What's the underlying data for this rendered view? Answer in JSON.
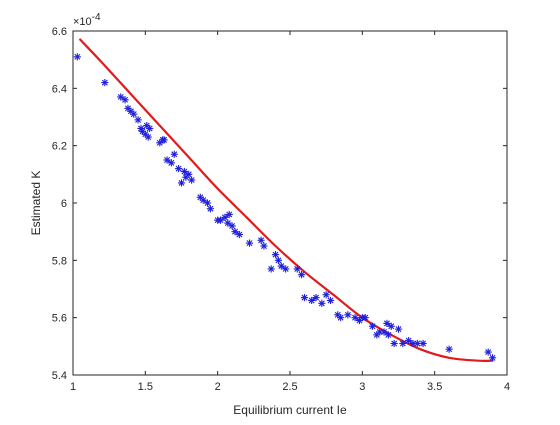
{
  "chart_data": {
    "type": "scatter",
    "xlabel": "Equilibrium current Ie",
    "ylabel": "Estimated K",
    "y_exponent_label": "×10",
    "y_exponent_power": "-4",
    "xlim": [
      1,
      4
    ],
    "ylim": [
      5.4,
      6.6
    ],
    "x_ticks": [
      "1",
      "1.5",
      "2",
      "2.5",
      "3",
      "3.5",
      "4"
    ],
    "y_ticks": [
      "5.4",
      "5.6",
      "5.8",
      "6",
      "6.2",
      "6.4",
      "6.6"
    ],
    "grid": false,
    "legend": "none",
    "colors": {
      "marker": "#1f1fdc",
      "fit": "#e31a1c",
      "axes": "#262626"
    },
    "series": [
      {
        "kind": "points",
        "marker": "asterisk",
        "x": [
          1.03,
          1.22,
          1.33,
          1.36,
          1.38,
          1.4,
          1.42,
          1.45,
          1.47,
          1.48,
          1.5,
          1.51,
          1.52,
          1.53,
          1.6,
          1.62,
          1.63,
          1.65,
          1.68,
          1.7,
          1.73,
          1.75,
          1.77,
          1.78,
          1.8,
          1.82,
          1.88,
          1.9,
          1.93,
          1.95,
          2.0,
          2.02,
          2.05,
          2.07,
          2.08,
          2.1,
          2.12,
          2.15,
          2.22,
          2.3,
          2.32,
          2.37,
          2.4,
          2.42,
          2.44,
          2.47,
          2.55,
          2.58,
          2.6,
          2.65,
          2.68,
          2.72,
          2.75,
          2.78,
          2.83,
          2.85,
          2.9,
          2.95,
          2.98,
          3.0,
          3.02,
          3.07,
          3.1,
          3.12,
          3.15,
          3.17,
          3.18,
          3.2,
          3.22,
          3.25,
          3.28,
          3.32,
          3.35,
          3.38,
          3.42,
          3.6,
          3.87,
          3.9
        ],
        "y": [
          6.51,
          6.42,
          6.37,
          6.36,
          6.33,
          6.32,
          6.31,
          6.29,
          6.26,
          6.25,
          6.24,
          6.27,
          6.23,
          6.26,
          6.21,
          6.22,
          6.22,
          6.15,
          6.14,
          6.17,
          6.12,
          6.07,
          6.11,
          6.09,
          6.1,
          6.08,
          6.02,
          6.01,
          6.0,
          5.98,
          5.94,
          5.94,
          5.95,
          5.93,
          5.96,
          5.92,
          5.9,
          5.89,
          5.86,
          5.87,
          5.85,
          5.77,
          5.82,
          5.8,
          5.78,
          5.77,
          5.77,
          5.75,
          5.67,
          5.66,
          5.67,
          5.65,
          5.68,
          5.66,
          5.61,
          5.6,
          5.61,
          5.6,
          5.59,
          5.6,
          5.6,
          5.57,
          5.54,
          5.55,
          5.55,
          5.58,
          5.54,
          5.57,
          5.51,
          5.56,
          5.51,
          5.52,
          5.51,
          5.51,
          5.51,
          5.49,
          5.48,
          5.46
        ]
      },
      {
        "kind": "fit-curve",
        "x": [
          1.05,
          1.2,
          1.4,
          1.6,
          1.8,
          2.0,
          2.2,
          2.4,
          2.6,
          2.8,
          3.0,
          3.2,
          3.4,
          3.6,
          3.8,
          3.9
        ],
        "y": [
          6.57,
          6.49,
          6.38,
          6.27,
          6.16,
          6.05,
          5.95,
          5.85,
          5.76,
          5.68,
          5.6,
          5.54,
          5.49,
          5.46,
          5.45,
          5.45
        ]
      }
    ]
  }
}
